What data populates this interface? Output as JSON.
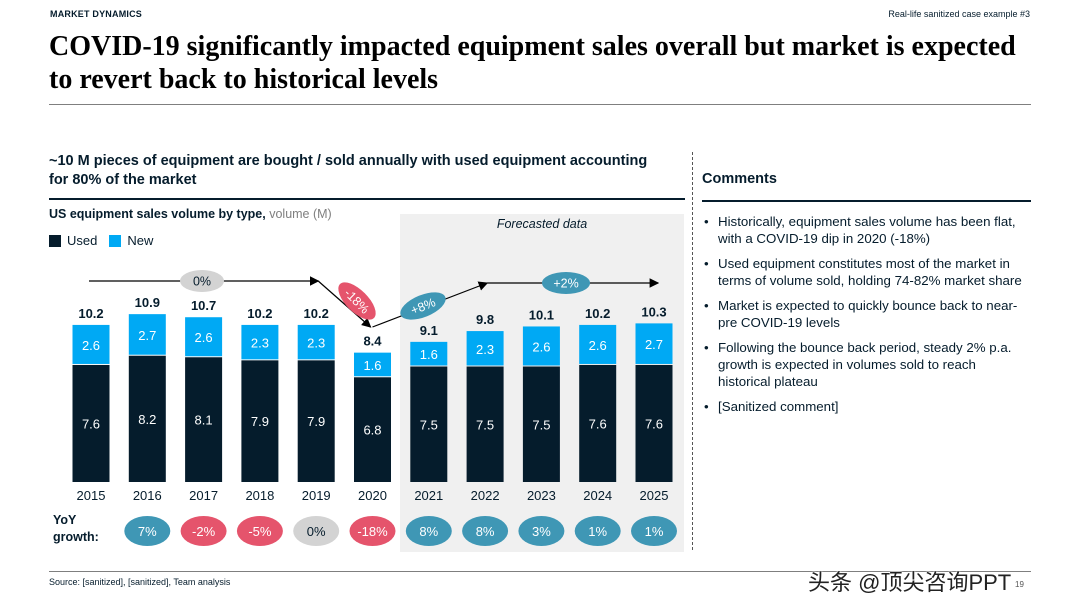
{
  "header": {
    "section_tag": "MARKET DYNAMICS",
    "case_label": "Real-life sanitized case example #3",
    "title": "COVID-19 significantly impacted equipment sales overall but market is expected to revert back to historical levels"
  },
  "left": {
    "subtitle": "~10 M pieces of equipment are bought / sold annually with used equipment accounting for 80% of the market"
  },
  "chart_data": {
    "type": "bar",
    "stacked": true,
    "title": "US equipment sales volume by type,",
    "title_unit": "volume (M)",
    "categories": [
      "2015",
      "2016",
      "2017",
      "2018",
      "2019",
      "2020",
      "2021",
      "2022",
      "2023",
      "2024",
      "2025"
    ],
    "series": [
      {
        "name": "Used",
        "color": "#051c2c",
        "values": [
          7.6,
          8.2,
          8.1,
          7.9,
          7.9,
          6.8,
          7.5,
          7.5,
          7.5,
          7.6,
          7.6
        ]
      },
      {
        "name": "New",
        "color": "#00a9f4",
        "values": [
          2.6,
          2.7,
          2.6,
          2.3,
          2.3,
          1.6,
          1.6,
          2.3,
          2.6,
          2.6,
          2.7
        ]
      }
    ],
    "totals": [
      "10.2",
      "10.9",
      "10.7",
      "10.2",
      "10.2",
      "8.4",
      "9.1",
      "9.8",
      "10.1",
      "10.2",
      "10.3"
    ],
    "forecast_label": "Forecasted data",
    "forecast_from": "2021",
    "trend_annotations": [
      {
        "label": "0%",
        "from": "2015",
        "to": "2019",
        "color": "#d3d3d3"
      },
      {
        "label": "-18%",
        "from": "2019",
        "to": "2020",
        "color": "#e5546c"
      },
      {
        "label": "+8%",
        "from": "2020",
        "to": "2022",
        "color": "#3f97b5"
      },
      {
        "label": "+2%",
        "from": "2022",
        "to": "2025",
        "color": "#3f97b5"
      }
    ],
    "yoy_label": "YoY growth:",
    "yoy_growth": [
      {
        "label": "7%",
        "color": "#3f97b5"
      },
      {
        "label": "-2%",
        "color": "#e5546c"
      },
      {
        "label": "-5%",
        "color": "#e5546c"
      },
      {
        "label": "0%",
        "color": "#d3d3d3"
      },
      {
        "label": "-18%",
        "color": "#e5546c"
      },
      {
        "label": "8%",
        "color": "#3f97b5"
      },
      {
        "label": "8%",
        "color": "#3f97b5"
      },
      {
        "label": "3%",
        "color": "#3f97b5"
      },
      {
        "label": "1%",
        "color": "#3f97b5"
      },
      {
        "label": "1%",
        "color": "#3f97b5"
      }
    ],
    "ylim": [
      0,
      11
    ]
  },
  "comments": {
    "heading": "Comments",
    "items": [
      "Historically, equipment sales volume has been flat, with a COVID-19 dip in 2020 (-18%)",
      "Used equipment constitutes most of the market in terms of volume sold, holding 74-82% market share",
      "Market is expected to quickly bounce back to near-pre COVID-19 levels",
      "Following the bounce back period, steady 2% p.a. growth is expected in volumes sold to reach historical plateau",
      "[Sanitized comment]"
    ]
  },
  "footer": {
    "source": "Source: [sanitized], [sanitized], Team analysis",
    "page_number": "19",
    "watermark": "头条 @顶尖咨询PPT"
  }
}
